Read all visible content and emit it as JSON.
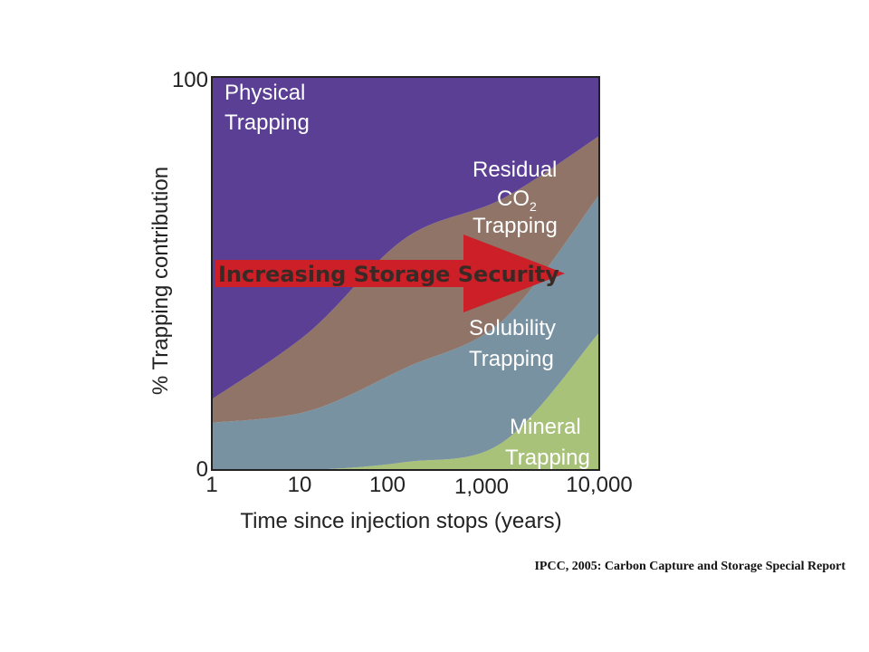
{
  "chart_data": {
    "type": "area",
    "stacked": true,
    "x_scale": "log",
    "x": [
      1,
      10,
      100,
      1000,
      10000
    ],
    "xticks": [
      "1",
      "10",
      "100",
      "1,000",
      "10,000"
    ],
    "ylim": [
      0,
      100
    ],
    "yticks": [
      "0",
      "100"
    ],
    "xlabel": "Time since injection stops (years)",
    "ylabel": "% Trapping contribution",
    "series": [
      {
        "name": "Mineral Trapping",
        "values": [
          0,
          0,
          2,
          7,
          35
        ],
        "color": "#a9c27a"
      },
      {
        "name": "Solubility Trapping",
        "values": [
          12,
          15,
          24,
          31,
          35
        ],
        "color": "#7892a1"
      },
      {
        "name": "Residual CO2 Trapping",
        "values": [
          6,
          20,
          33,
          31,
          15
        ],
        "color": "#8f7467"
      },
      {
        "name": "Physical Trapping",
        "values": [
          82,
          65,
          41,
          31,
          15
        ],
        "color": "#5b3f95"
      }
    ],
    "annotation": "Increasing Storage Security",
    "arrow_color": "#cc1f27"
  },
  "labels": {
    "physical_1": "Physical",
    "physical_2": "Trapping",
    "residual_1": "Residual",
    "residual_2": "CO",
    "residual_sub": "2",
    "residual_3": "Trapping",
    "solubility_1": "Solubility",
    "solubility_2": "Trapping",
    "mineral_1": "Mineral",
    "mineral_2": "Trapping"
  },
  "credit": "IPCC, 2005: Carbon Capture and Storage Special Report"
}
